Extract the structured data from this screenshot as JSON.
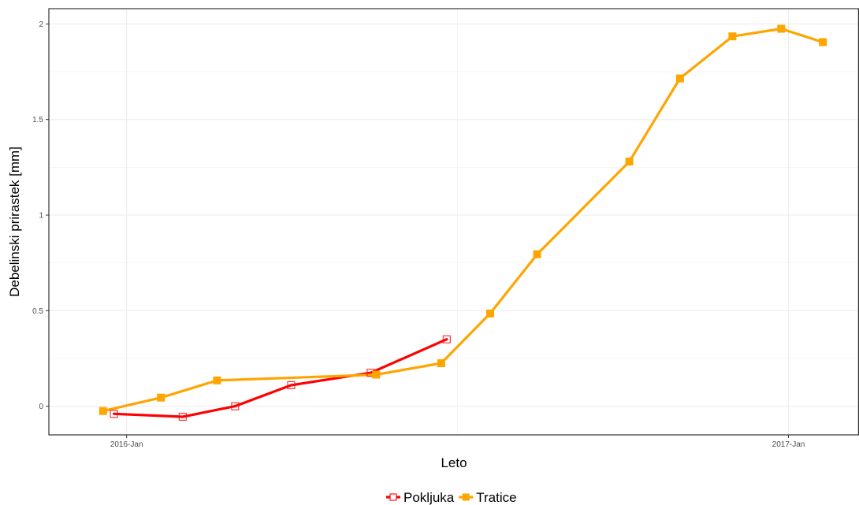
{
  "chart_data": {
    "type": "line",
    "xlabel": "Leto",
    "ylabel": "Debelinski prirastek [mm]",
    "x_ticks": [
      {
        "date": "2016-01-01",
        "label": "2016-Jan"
      },
      {
        "date": "2017-01-01",
        "label": "2017-Jan"
      }
    ],
    "y_ticks": [
      {
        "value": 0,
        "label": "0"
      },
      {
        "value": 0.5,
        "label": "0.5"
      },
      {
        "value": 1,
        "label": "1"
      },
      {
        "value": 1.5,
        "label": "1.5"
      },
      {
        "value": 2,
        "label": "2"
      }
    ],
    "xlim": [
      "2015-11-19",
      "2017-02-09"
    ],
    "ylim": [
      -0.15,
      2.08
    ],
    "grid": true,
    "legend_position": "bottom",
    "series": [
      {
        "name": "Pokljuka",
        "color": "#ff0000",
        "marker": "open-square",
        "points": [
          {
            "date": "2015-12-25",
            "y": -0.04
          },
          {
            "date": "2016-02-01",
            "y": -0.055
          },
          {
            "date": "2016-03-01",
            "y": 0.0
          },
          {
            "date": "2016-04-01",
            "y": 0.11
          },
          {
            "date": "2016-05-15",
            "y": 0.175
          },
          {
            "date": "2016-06-26",
            "y": 0.35
          }
        ]
      },
      {
        "name": "Tratice",
        "color": "#ffa500",
        "marker": "filled-square",
        "points": [
          {
            "date": "2015-12-19",
            "y": -0.025
          },
          {
            "date": "2016-01-20",
            "y": 0.045
          },
          {
            "date": "2016-02-20",
            "y": 0.135
          },
          {
            "date": "2016-05-18",
            "y": 0.165
          },
          {
            "date": "2016-06-23",
            "y": 0.225
          },
          {
            "date": "2016-07-20",
            "y": 0.485
          },
          {
            "date": "2016-08-15",
            "y": 0.795
          },
          {
            "date": "2016-10-05",
            "y": 1.28
          },
          {
            "date": "2016-11-02",
            "y": 1.715
          },
          {
            "date": "2016-12-01",
            "y": 1.935
          },
          {
            "date": "2016-12-28",
            "y": 1.975
          },
          {
            "date": "2017-01-20",
            "y": 1.905
          }
        ]
      }
    ]
  }
}
